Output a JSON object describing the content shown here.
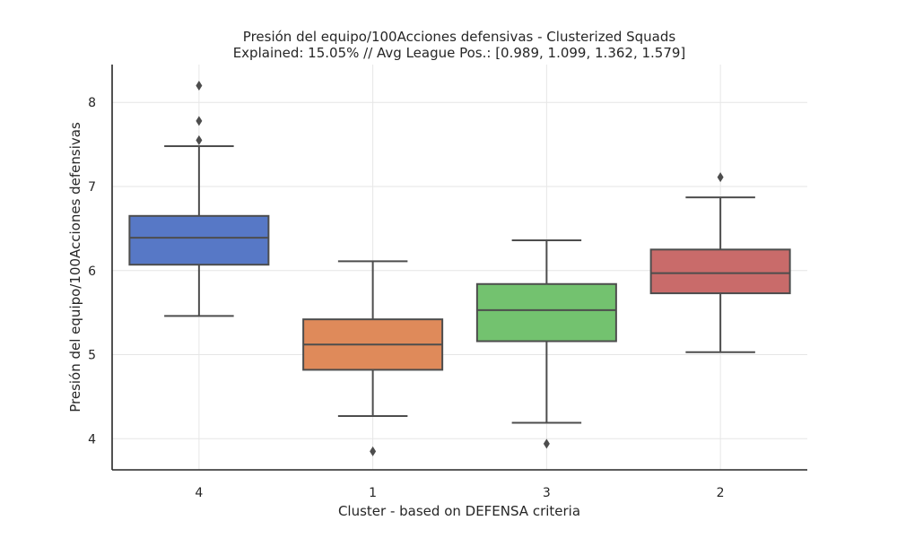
{
  "chart_data": {
    "type": "boxplot",
    "title": "Presión del equipo/100Acciones defensivas - Clusterized Squads",
    "subtitle": "Explained: 15.05% // Avg League Pos.: [0.989, 1.099, 1.362, 1.579]",
    "xlabel": "Cluster - based on DEFENSA criteria",
    "ylabel": "Presión del equipo/100Acciones defensivas",
    "ylim": [
      3.63,
      8.45
    ],
    "yticks": [
      4,
      5,
      6,
      7,
      8
    ],
    "grid": true,
    "categories": [
      "4",
      "1",
      "3",
      "2"
    ],
    "boxes": [
      {
        "category": "4",
        "color": "#5778c6",
        "whisker_low": 5.46,
        "q1": 6.07,
        "median": 6.39,
        "q3": 6.65,
        "whisker_high": 7.48,
        "outliers": [
          7.55,
          7.78,
          8.2
        ]
      },
      {
        "category": "1",
        "color": "#df8a5a",
        "whisker_low": 4.27,
        "q1": 4.82,
        "median": 5.12,
        "q3": 5.42,
        "whisker_high": 6.11,
        "outliers": [
          3.85
        ]
      },
      {
        "category": "3",
        "color": "#73c26f",
        "whisker_low": 4.19,
        "q1": 5.16,
        "median": 5.53,
        "q3": 5.84,
        "whisker_high": 6.36,
        "outliers": [
          3.94
        ]
      },
      {
        "category": "2",
        "color": "#c96b6a",
        "whisker_low": 5.03,
        "q1": 5.73,
        "median": 5.97,
        "q3": 6.25,
        "whisker_high": 6.87,
        "outliers": [
          7.11
        ]
      }
    ]
  }
}
